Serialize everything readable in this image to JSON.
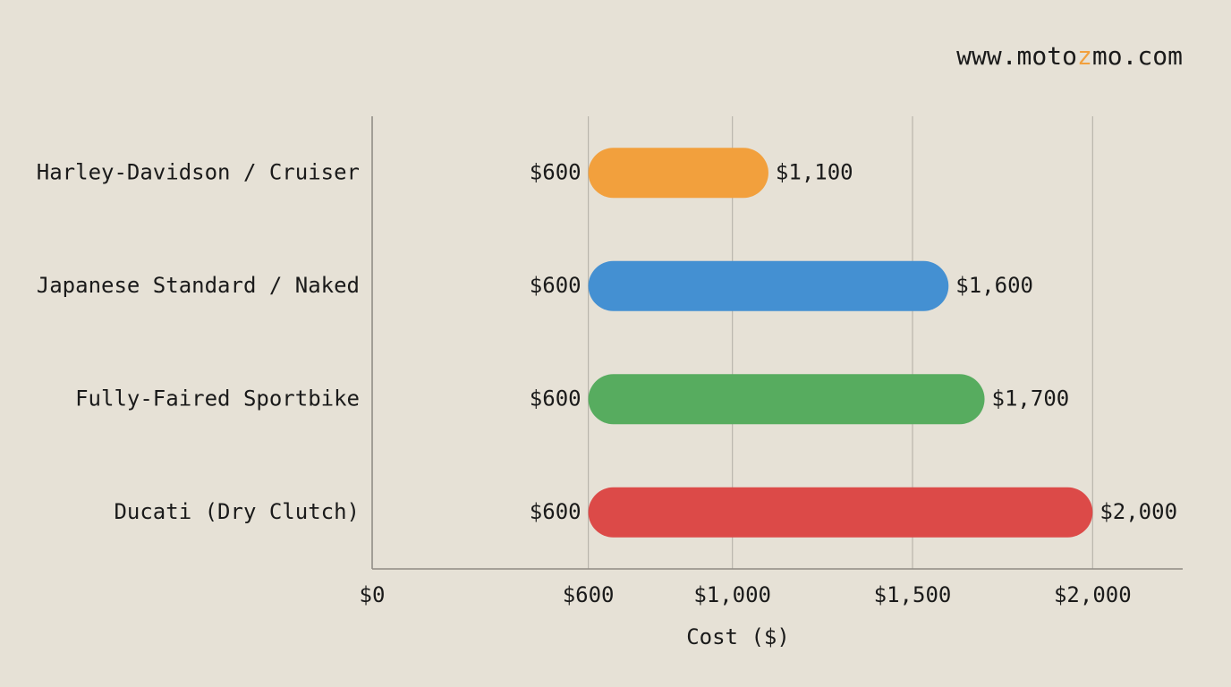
{
  "chart_data": {
    "type": "range-bar",
    "watermark": [
      "www.moto",
      "z",
      "mo.com"
    ],
    "categories": [
      "Harley-Davidson / Cruiser",
      "Japanese Standard / Naked",
      "Fully-Faired Sportbike",
      "Ducati (Dry Clutch)"
    ],
    "start": [
      600,
      600,
      600,
      600
    ],
    "start_labels": [
      "$600",
      "$600",
      "$600",
      "$600"
    ],
    "end": [
      1100,
      1600,
      1700,
      2000
    ],
    "end_labels": [
      "$1,100",
      "$1,600",
      "$1,700",
      "$2,000"
    ],
    "colors": [
      "#f2a03d",
      "#4490d2",
      "#57ac5f",
      "#dc4a48"
    ],
    "xlabel": "Cost ($)",
    "xlim": [
      0,
      2250
    ],
    "xticks": [
      {
        "value": 0,
        "label": "$0"
      },
      {
        "value": 600,
        "label": "$600"
      },
      {
        "value": 1000,
        "label": "$1,000"
      },
      {
        "value": 1500,
        "label": "$1,500"
      },
      {
        "value": 2000,
        "label": "$2,000"
      }
    ],
    "grid": true
  }
}
